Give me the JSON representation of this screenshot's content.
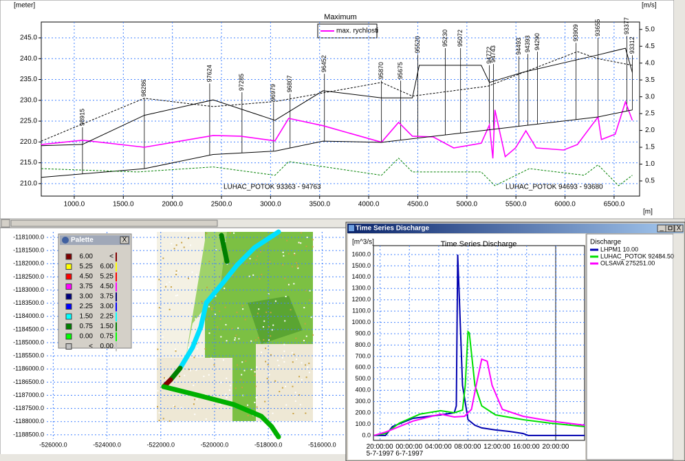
{
  "chart_data": [
    {
      "type": "line",
      "title": "Maximum",
      "y_label": "[meter]",
      "y2_label": "[m/s]",
      "x_label": "[m]",
      "xlim": [
        664,
        6760
      ],
      "ylim": [
        207,
        248.8
      ],
      "y2lim": [
        0.05,
        5.22
      ],
      "grid": true,
      "xticks": [
        {
          "value": 1000,
          "label": "1000.0"
        },
        {
          "value": 1500,
          "label": "1500.0"
        },
        {
          "value": 2000,
          "label": "2000.0"
        },
        {
          "value": 2500,
          "label": "2500.0"
        },
        {
          "value": 3000,
          "label": "3000.0"
        },
        {
          "value": 3500,
          "label": "3500.0"
        },
        {
          "value": 4000,
          "label": "4000.0"
        },
        {
          "value": 4500,
          "label": "4500.0"
        },
        {
          "value": 5000,
          "label": "5000.0"
        },
        {
          "value": 5500,
          "label": "5500.0"
        },
        {
          "value": 6000,
          "label": "6000.0"
        },
        {
          "value": 6500,
          "label": "6500.0"
        }
      ],
      "yticks": [
        {
          "value": 210,
          "label": "210.0"
        },
        {
          "value": 215,
          "label": "215.0"
        },
        {
          "value": 220,
          "label": "220.0"
        },
        {
          "value": 225,
          "label": "225.0"
        },
        {
          "value": 230,
          "label": "230.0"
        },
        {
          "value": 235,
          "label": "235.0"
        },
        {
          "value": 240,
          "label": "240.0"
        },
        {
          "value": 245,
          "label": "245.0"
        }
      ],
      "y2ticks": [
        0.5,
        {
          "value": 1,
          "label": "1.0"
        },
        1.5,
        {
          "value": 2,
          "label": "2.0"
        },
        2.5,
        {
          "value": 3,
          "label": "3.0"
        },
        3.5,
        {
          "value": 4,
          "label": "4.0"
        },
        4.5,
        {
          "value": 5,
          "label": "5.0"
        }
      ],
      "series": [
        {
          "name": "max. rychlosti",
          "color": "#ff00ff",
          "axis": "y2",
          "x": [
            664,
            1084,
            1714,
            2415,
            2695,
            3045,
            3185,
            3535,
            4130,
            4305,
            4445,
            4656,
            4866,
            5146,
            5230,
            5265,
            5286,
            5391,
            5496,
            5601,
            5706,
            5986,
            6126,
            6336,
            6371,
            6511,
            6616,
            6686
          ],
          "values": [
            1.58,
            1.71,
            1.5,
            1.85,
            1.83,
            1.69,
            2.36,
            2.14,
            1.65,
            2.24,
            1.83,
            1.81,
            1.48,
            1.62,
            2.16,
            1.17,
            2.61,
            1.22,
            1.48,
            1.99,
            1.48,
            1.42,
            1.58,
            2.4,
            1.73,
            1.89,
            2.85,
            2.3
          ]
        },
        {
          "color": "#000000",
          "dashed": false,
          "x": [
            664,
            1084,
            1714,
            2415,
            3045,
            3535,
            4130,
            4445,
            4515,
            5146,
            5230,
            5566,
            6336,
            6616,
            6686
          ],
          "values": [
            219.1,
            219.4,
            226.4,
            230.1,
            225.2,
            232.3,
            230.6,
            230.6,
            238.4,
            238.4,
            234.3,
            236.7,
            240.9,
            242.5,
            236.7
          ]
        },
        {
          "color": "#000000",
          "dashed": false,
          "x": [
            664,
            1714,
            2415,
            3045,
            3535,
            4130,
            5146,
            6336,
            6686
          ],
          "values": [
            211.5,
            213.6,
            217,
            217.8,
            220.2,
            219.9,
            222.7,
            226,
            227.7
          ]
        },
        {
          "color": "#000000",
          "dashed": true,
          "x": [
            664,
            1714,
            2415,
            3045,
            4130,
            4445,
            5216,
            6126,
            6336,
            6686
          ],
          "values": [
            220.2,
            230.5,
            228.5,
            229.7,
            234.3,
            231,
            233.4,
            241.7,
            240,
            238.4
          ]
        },
        {
          "color": "#008000",
          "dashed": true,
          "x": [
            664,
            1644,
            2415,
            3045,
            3185,
            4130,
            4305,
            4445,
            5146,
            5286,
            5636,
            6196,
            6336,
            6546,
            6686
          ],
          "values": [
            213.6,
            212.8,
            214,
            212,
            215.3,
            212,
            216.1,
            212.8,
            212.8,
            209.5,
            213.6,
            212,
            214.5,
            209.5,
            212
          ]
        }
      ],
      "sections": [
        {
          "label": "98915",
          "x": 1084
        },
        {
          "label": "98286",
          "x": 1714
        },
        {
          "label": "97624",
          "x": 2380
        },
        {
          "label": "97285",
          "x": 2709
        },
        {
          "label": "96979",
          "x": 3031
        },
        {
          "label": "96807",
          "x": 3199
        },
        {
          "label": "96452",
          "x": 3549
        },
        {
          "label": "95870",
          "x": 4130
        },
        {
          "label": "95675",
          "x": 4326
        },
        {
          "label": "95520",
          "x": 4501
        },
        {
          "label": "95230",
          "x": 4781
        },
        {
          "label": "95072",
          "x": 4936
        },
        {
          "label": "94772",
          "x": 5230
        },
        {
          "label": "94743",
          "x": 5272
        },
        {
          "label": "94493",
          "x": 5531
        },
        {
          "label": "94393",
          "x": 5622
        },
        {
          "label": "94290",
          "x": 5720
        },
        {
          "label": "93909",
          "x": 6112
        },
        {
          "label": "93655",
          "x": 6336
        },
        {
          "label": "93377",
          "x": 6630
        },
        {
          "label": "93312",
          "x": 6686
        }
      ],
      "annotations": [
        "LUHAC_POTOK  93363 - 94763",
        "LUHAC_POTOK  94693 - 93680"
      ]
    },
    {
      "type": "map",
      "xlim": [
        -526240,
        -515190
      ],
      "ylim": [
        -1188660,
        -1180790
      ],
      "grid": true,
      "xticks": [
        {
          "value": -526000,
          "label": "-526000.0"
        },
        {
          "value": -524000,
          "label": "-524000.0"
        },
        {
          "value": -522000,
          "label": "-522000.0"
        },
        {
          "value": -520000,
          "label": "-520000.0"
        },
        {
          "value": -518000,
          "label": "-518000.0"
        },
        {
          "value": -516000,
          "label": "-516000.0"
        }
      ],
      "yticks": [
        {
          "value": -1181000,
          "label": "-1181000.0"
        },
        {
          "value": -1181500,
          "label": "-1181500.0"
        },
        {
          "value": -1182000,
          "label": "-1182000.0"
        },
        {
          "value": -1182500,
          "label": "-1182500.0"
        },
        {
          "value": -1183000,
          "label": "-1183000.0"
        },
        {
          "value": -1183500,
          "label": "-1183500.0"
        },
        {
          "value": -1184000,
          "label": "-1184000.0"
        },
        {
          "value": -1184500,
          "label": "-1184500.0"
        },
        {
          "value": -1185000,
          "label": "-1185000.0"
        },
        {
          "value": -1185500,
          "label": "-1185500.0"
        },
        {
          "value": -1186000,
          "label": "-1186000.0"
        },
        {
          "value": -1186500,
          "label": "-1186500.0"
        },
        {
          "value": -1187000,
          "label": "-1187000.0"
        },
        {
          "value": -1187500,
          "label": "-1187500.0"
        },
        {
          "value": -1188000,
          "label": "-1188000.0"
        },
        {
          "value": -1188500,
          "label": "-1188500.0"
        }
      ]
    },
    {
      "type": "line",
      "title": "Time Series Discharge",
      "y_label": "[m^3/s]",
      "legend_title": "Discharge",
      "xlim": [
        19.1,
        47.9
      ],
      "ylim": [
        -43,
        1679
      ],
      "grid": true,
      "xticks": [
        {
          "value": 20,
          "label": "20:00:00\n5-7-1997"
        },
        {
          "value": 24,
          "label": "00:00:00\n6-7-1997"
        },
        {
          "value": 28,
          "label": "04:00:00"
        },
        {
          "value": 32,
          "label": "08:00:00"
        },
        {
          "value": 36,
          "label": "12:00:00"
        },
        {
          "value": 40,
          "label": "16:00:00"
        },
        {
          "value": 44,
          "label": "20:00:00"
        }
      ],
      "yticks": [
        {
          "value": 0,
          "label": "0.0"
        },
        {
          "value": 100,
          "label": "100.0"
        },
        {
          "value": 200,
          "label": "200.0"
        },
        {
          "value": 300,
          "label": "300.0"
        },
        {
          "value": 400,
          "label": "400.0"
        },
        {
          "value": 500,
          "label": "500.0"
        },
        {
          "value": 600,
          "label": "600.0"
        },
        {
          "value": 700,
          "label": "700.0"
        },
        {
          "value": 800,
          "label": "800.0"
        },
        {
          "value": 900,
          "label": "900.0"
        },
        {
          "value": 1000,
          "label": "1000.0"
        },
        {
          "value": 1100,
          "label": "1100.0"
        },
        {
          "value": 1200,
          "label": "1200.0"
        },
        {
          "value": 1300,
          "label": "1300.0"
        },
        {
          "value": 1400,
          "label": "1400.0"
        },
        {
          "value": 1500,
          "label": "1500.0"
        },
        {
          "value": 1600,
          "label": "1600.0"
        }
      ],
      "series": [
        {
          "name": "LHPM1  10.00",
          "color": "#0000b0",
          "x": [
            19.16,
            20.75,
            21.69,
            24.5,
            28.25,
            30.12,
            30.4,
            30.59,
            30.87,
            31.25,
            32,
            32.94,
            33.87,
            35.75,
            37.62,
            39.49,
            40.24,
            47.9
          ],
          "values": [
            0,
            0,
            79,
            152,
            182,
            201,
            262,
            1600,
            1113,
            444,
            140,
            91,
            67,
            49,
            36,
            18,
            0,
            0
          ]
        },
        {
          "name": "LUHAC_POTOK  92484.50",
          "color": "#00e000",
          "x": [
            19.16,
            20.75,
            22.62,
            25.44,
            28.25,
            30.12,
            31.25,
            31.62,
            32,
            32.18,
            32.94,
            33.87,
            35.75,
            39.49,
            43.24,
            47.9
          ],
          "values": [
            0,
            18,
            109,
            189,
            219,
            201,
            225,
            444,
            918,
            906,
            444,
            262,
            182,
            140,
            109,
            79
          ]
        },
        {
          "name": "OLSAVA  275251.00",
          "color": "#ff00ff",
          "x": [
            19.16,
            20.75,
            24.5,
            28.25,
            30.12,
            31.53,
            32.47,
            33.12,
            33.87,
            34.62,
            35.28,
            36.68,
            39.49,
            43.24,
            47.9
          ],
          "values": [
            0,
            30,
            128,
            189,
            164,
            170,
            231,
            444,
            675,
            657,
            444,
            231,
            170,
            128,
            91
          ]
        }
      ]
    }
  ],
  "palette": {
    "title": "Palette",
    "rows": [
      {
        "from": "6.00",
        "to": "<",
        "color": "#800000"
      },
      {
        "from": "5.25",
        "to": "6.00",
        "color": "#ffff00"
      },
      {
        "from": "4.50",
        "to": "5.25",
        "color": "#ff0000"
      },
      {
        "from": "3.75",
        "to": "4.50",
        "color": "#ff00ff"
      },
      {
        "from": "3.00",
        "to": "3.75",
        "color": "#000080"
      },
      {
        "from": "2.25",
        "to": "3.00",
        "color": "#0000ff"
      },
      {
        "from": "1.50",
        "to": "2.25",
        "color": "#00ffff"
      },
      {
        "from": "0.75",
        "to": "1.50",
        "color": "#008000"
      },
      {
        "from": "0.00",
        "to": "0.75",
        "color": "#00ff00"
      },
      {
        "from": "<",
        "to": "0.00",
        "color": "#c0c0c0"
      }
    ]
  },
  "window": {
    "title": "Time Series Discharge"
  }
}
